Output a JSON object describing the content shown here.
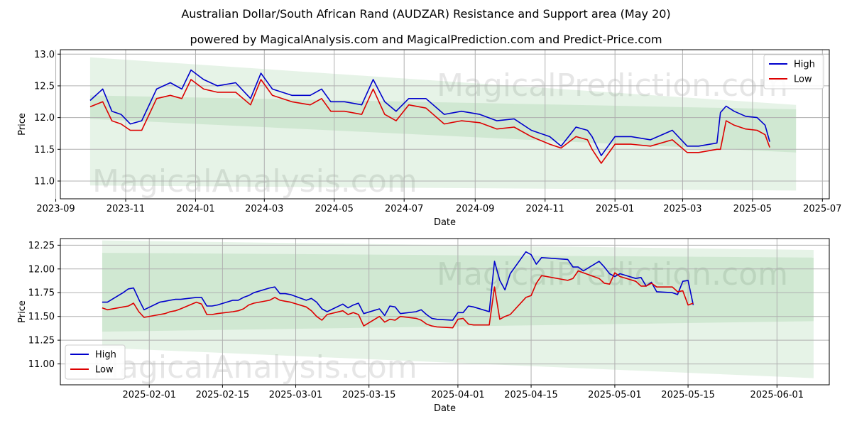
{
  "title": "Australian Dollar/South African Rand (AUDZAR) Resistance and Support area (May 20)",
  "subtitle": "powered by MagicalAnalysis.com and MagicalPrediction.com and Predict-Price.com",
  "watermarks": [
    "MagicalAnalysis.com",
    "MagicalPrediction.com"
  ],
  "colors": {
    "high": "#0000cc",
    "low": "#dd0000",
    "band": "#2e9e3a",
    "grid": "#b0b0b0"
  },
  "chart_data": [
    {
      "type": "line",
      "xlabel": "Date",
      "ylabel": "Price",
      "xlim": [
        "2023-09-05",
        "2025-07-07"
      ],
      "ylim": [
        10.72,
        13.07
      ],
      "xticks": [
        "2023-09",
        "2023-11",
        "2024-01",
        "2024-03",
        "2024-05",
        "2024-07",
        "2024-09",
        "2024-11",
        "2025-01",
        "2025-03",
        "2025-05",
        "2025-07"
      ],
      "xtick_dates": [
        "2023-09-01",
        "2023-11-01",
        "2024-01-01",
        "2024-03-01",
        "2024-05-01",
        "2024-07-01",
        "2024-09-01",
        "2024-11-01",
        "2025-01-01",
        "2025-03-01",
        "2025-05-01",
        "2025-07-01"
      ],
      "yticks": [
        "11.0",
        "11.5",
        "12.0",
        "12.5",
        "13.0"
      ],
      "grid": true,
      "legend": {
        "position": "top-right",
        "entries": [
          "High",
          "Low"
        ]
      },
      "bands": [
        {
          "x": [
            "2023-10-01",
            "2025-06-08"
          ],
          "upper": [
            12.95,
            12.2
          ],
          "lower": [
            10.93,
            10.85
          ]
        },
        {
          "x": [
            "2023-10-01",
            "2025-06-08"
          ],
          "upper": [
            12.35,
            12.13
          ],
          "lower": [
            11.98,
            11.45
          ]
        }
      ],
      "series": [
        {
          "name": "High",
          "x": [
            "2023-10-01",
            "2023-10-12",
            "2023-10-20",
            "2023-10-28",
            "2023-11-05",
            "2023-11-15",
            "2023-11-28",
            "2023-12-10",
            "2023-12-20",
            "2023-12-28",
            "2024-01-08",
            "2024-01-20",
            "2024-02-05",
            "2024-02-18",
            "2024-02-27",
            "2024-03-08",
            "2024-03-25",
            "2024-04-10",
            "2024-04-20",
            "2024-04-28",
            "2024-05-10",
            "2024-05-25",
            "2024-06-04",
            "2024-06-14",
            "2024-06-24",
            "2024-07-05",
            "2024-07-20",
            "2024-08-05",
            "2024-08-20",
            "2024-09-05",
            "2024-09-20",
            "2024-10-05",
            "2024-10-20",
            "2024-11-05",
            "2024-11-15",
            "2024-11-28",
            "2024-12-08",
            "2024-12-12",
            "2024-12-20",
            "2025-01-01",
            "2025-01-15",
            "2025-02-01",
            "2025-02-20",
            "2025-03-05",
            "2025-03-15",
            "2025-03-31",
            "2025-04-03",
            "2025-04-08",
            "2025-04-15",
            "2025-04-25",
            "2025-05-05",
            "2025-05-12",
            "2025-05-16"
          ],
          "values": [
            12.27,
            12.45,
            12.1,
            12.05,
            11.9,
            11.95,
            12.45,
            12.55,
            12.45,
            12.75,
            12.6,
            12.5,
            12.55,
            12.3,
            12.7,
            12.45,
            12.35,
            12.35,
            12.45,
            12.25,
            12.25,
            12.2,
            12.6,
            12.25,
            12.1,
            12.3,
            12.3,
            12.05,
            12.1,
            12.05,
            11.95,
            11.98,
            11.8,
            11.7,
            11.55,
            11.85,
            11.8,
            11.7,
            11.4,
            11.7,
            11.7,
            11.65,
            11.8,
            11.55,
            11.55,
            11.6,
            12.08,
            12.18,
            12.1,
            12.02,
            12.0,
            11.88,
            11.62
          ]
        },
        {
          "name": "Low",
          "x": [
            "2023-10-01",
            "2023-10-12",
            "2023-10-20",
            "2023-10-28",
            "2023-11-05",
            "2023-11-15",
            "2023-11-28",
            "2023-12-10",
            "2023-12-20",
            "2023-12-28",
            "2024-01-08",
            "2024-01-20",
            "2024-02-05",
            "2024-02-18",
            "2024-02-27",
            "2024-03-08",
            "2024-03-25",
            "2024-04-10",
            "2024-04-20",
            "2024-04-28",
            "2024-05-10",
            "2024-05-25",
            "2024-06-04",
            "2024-06-14",
            "2024-06-24",
            "2024-07-05",
            "2024-07-20",
            "2024-08-05",
            "2024-08-20",
            "2024-09-05",
            "2024-09-20",
            "2024-10-05",
            "2024-10-20",
            "2024-11-05",
            "2024-11-15",
            "2024-11-28",
            "2024-12-08",
            "2024-12-12",
            "2024-12-20",
            "2025-01-01",
            "2025-01-15",
            "2025-02-01",
            "2025-02-20",
            "2025-03-05",
            "2025-03-15",
            "2025-03-31",
            "2025-04-03",
            "2025-04-08",
            "2025-04-15",
            "2025-04-25",
            "2025-05-05",
            "2025-05-12",
            "2025-05-16"
          ],
          "values": [
            12.17,
            12.25,
            11.95,
            11.9,
            11.8,
            11.8,
            12.3,
            12.35,
            12.3,
            12.6,
            12.45,
            12.4,
            12.4,
            12.2,
            12.6,
            12.35,
            12.25,
            12.2,
            12.3,
            12.1,
            12.1,
            12.05,
            12.45,
            12.05,
            11.95,
            12.2,
            12.15,
            11.9,
            11.95,
            11.92,
            11.82,
            11.85,
            11.7,
            11.58,
            11.52,
            11.7,
            11.65,
            11.5,
            11.28,
            11.58,
            11.58,
            11.55,
            11.65,
            11.45,
            11.45,
            11.5,
            11.5,
            11.95,
            11.88,
            11.82,
            11.8,
            11.73,
            11.53
          ]
        }
      ]
    },
    {
      "type": "line",
      "xlabel": "Date",
      "ylabel": "Price",
      "xlim": [
        "2025-01-15",
        "2025-06-11"
      ],
      "ylim": [
        10.78,
        12.32
      ],
      "xticks": [
        "2025-02-01",
        "2025-02-15",
        "2025-03-01",
        "2025-03-15",
        "2025-04-01",
        "2025-04-15",
        "2025-05-01",
        "2025-05-15",
        "2025-06-01"
      ],
      "yticks": [
        "11.00",
        "11.25",
        "11.50",
        "11.75",
        "12.00",
        "12.25"
      ],
      "grid": true,
      "legend": {
        "position": "bottom-left",
        "entries": [
          "High",
          "Low"
        ]
      },
      "bands": [
        {
          "x": [
            "2025-01-23",
            "2025-06-08"
          ],
          "upper": [
            12.3,
            12.2
          ],
          "lower": [
            11.17,
            10.85
          ]
        },
        {
          "x": [
            "2025-01-23",
            "2025-06-08"
          ],
          "upper": [
            12.17,
            12.12
          ],
          "lower": [
            11.34,
            11.45
          ]
        }
      ],
      "series": [
        {
          "name": "High",
          "x": [
            "2025-01-23",
            "2025-01-24",
            "2025-01-27",
            "2025-01-28",
            "2025-01-29",
            "2025-01-30",
            "2025-01-31",
            "2025-02-03",
            "2025-02-04",
            "2025-02-05",
            "2025-02-06",
            "2025-02-07",
            "2025-02-10",
            "2025-02-11",
            "2025-02-12",
            "2025-02-13",
            "2025-02-14",
            "2025-02-17",
            "2025-02-18",
            "2025-02-19",
            "2025-02-20",
            "2025-02-21",
            "2025-02-24",
            "2025-02-25",
            "2025-02-26",
            "2025-02-27",
            "2025-02-28",
            "2025-03-03",
            "2025-03-04",
            "2025-03-05",
            "2025-03-06",
            "2025-03-07",
            "2025-03-10",
            "2025-03-11",
            "2025-03-12",
            "2025-03-13",
            "2025-03-14",
            "2025-03-17",
            "2025-03-18",
            "2025-03-19",
            "2025-03-20",
            "2025-03-21",
            "2025-03-24",
            "2025-03-25",
            "2025-03-26",
            "2025-03-27",
            "2025-03-28",
            "2025-03-31",
            "2025-04-01",
            "2025-04-02",
            "2025-04-03",
            "2025-04-04",
            "2025-04-07",
            "2025-04-08",
            "2025-04-09",
            "2025-04-10",
            "2025-04-11",
            "2025-04-14",
            "2025-04-15",
            "2025-04-16",
            "2025-04-17",
            "2025-04-22",
            "2025-04-23",
            "2025-04-24",
            "2025-04-25",
            "2025-04-28",
            "2025-04-29",
            "2025-04-30",
            "2025-05-01",
            "2025-05-02",
            "2025-05-05",
            "2025-05-06",
            "2025-05-07",
            "2025-05-08",
            "2025-05-09",
            "2025-05-12",
            "2025-05-13",
            "2025-05-14",
            "2025-05-15",
            "2025-05-16"
          ],
          "values": [
            11.65,
            11.65,
            11.75,
            11.79,
            11.8,
            11.68,
            11.57,
            11.65,
            11.66,
            11.67,
            11.68,
            11.68,
            11.7,
            11.7,
            11.61,
            11.61,
            11.62,
            11.67,
            11.67,
            11.7,
            11.72,
            11.75,
            11.8,
            11.81,
            11.74,
            11.74,
            11.73,
            11.67,
            11.69,
            11.65,
            11.58,
            11.55,
            11.63,
            11.59,
            11.62,
            11.64,
            11.53,
            11.58,
            11.51,
            11.61,
            11.6,
            11.53,
            11.55,
            11.57,
            11.52,
            11.48,
            11.47,
            11.46,
            11.54,
            11.54,
            11.61,
            11.6,
            11.55,
            12.08,
            11.88,
            11.78,
            11.95,
            12.18,
            12.15,
            12.05,
            12.12,
            12.1,
            12.02,
            12.02,
            11.98,
            12.08,
            12.02,
            11.95,
            11.92,
            11.95,
            11.9,
            11.91,
            11.82,
            11.86,
            11.76,
            11.75,
            11.73,
            11.87,
            11.88,
            11.62
          ]
        },
        {
          "name": "Low",
          "x": [
            "2025-01-23",
            "2025-01-24",
            "2025-01-27",
            "2025-01-28",
            "2025-01-29",
            "2025-01-30",
            "2025-01-31",
            "2025-02-03",
            "2025-02-04",
            "2025-02-05",
            "2025-02-06",
            "2025-02-07",
            "2025-02-10",
            "2025-02-11",
            "2025-02-12",
            "2025-02-13",
            "2025-02-14",
            "2025-02-17",
            "2025-02-18",
            "2025-02-19",
            "2025-02-20",
            "2025-02-21",
            "2025-02-24",
            "2025-02-25",
            "2025-02-26",
            "2025-02-27",
            "2025-02-28",
            "2025-03-03",
            "2025-03-04",
            "2025-03-05",
            "2025-03-06",
            "2025-03-07",
            "2025-03-10",
            "2025-03-11",
            "2025-03-12",
            "2025-03-13",
            "2025-03-14",
            "2025-03-17",
            "2025-03-18",
            "2025-03-19",
            "2025-03-20",
            "2025-03-21",
            "2025-03-24",
            "2025-03-25",
            "2025-03-26",
            "2025-03-27",
            "2025-03-28",
            "2025-03-31",
            "2025-04-01",
            "2025-04-02",
            "2025-04-03",
            "2025-04-04",
            "2025-04-07",
            "2025-04-08",
            "2025-04-09",
            "2025-04-10",
            "2025-04-11",
            "2025-04-14",
            "2025-04-15",
            "2025-04-16",
            "2025-04-17",
            "2025-04-22",
            "2025-04-23",
            "2025-04-24",
            "2025-04-25",
            "2025-04-28",
            "2025-04-29",
            "2025-04-30",
            "2025-05-01",
            "2025-05-02",
            "2025-05-05",
            "2025-05-06",
            "2025-05-07",
            "2025-05-08",
            "2025-05-09",
            "2025-05-12",
            "2025-05-13",
            "2025-05-14",
            "2025-05-15",
            "2025-05-16"
          ],
          "values": [
            11.59,
            11.57,
            11.6,
            11.61,
            11.64,
            11.55,
            11.49,
            11.52,
            11.53,
            11.55,
            11.56,
            11.58,
            11.65,
            11.63,
            11.52,
            11.52,
            11.53,
            11.55,
            11.56,
            11.58,
            11.62,
            11.64,
            11.67,
            11.7,
            11.67,
            11.66,
            11.65,
            11.6,
            11.56,
            11.5,
            11.46,
            11.52,
            11.56,
            11.52,
            11.54,
            11.52,
            11.4,
            11.5,
            11.44,
            11.47,
            11.46,
            11.5,
            11.48,
            11.46,
            11.42,
            11.4,
            11.39,
            11.38,
            11.47,
            11.48,
            11.42,
            11.41,
            11.41,
            11.81,
            11.47,
            11.5,
            11.52,
            11.7,
            11.72,
            11.85,
            11.93,
            11.88,
            11.9,
            11.98,
            11.96,
            11.9,
            11.85,
            11.84,
            11.96,
            11.92,
            11.87,
            11.82,
            11.82,
            11.85,
            11.81,
            11.81,
            11.76,
            11.77,
            11.62,
            11.64
          ]
        }
      ]
    }
  ]
}
